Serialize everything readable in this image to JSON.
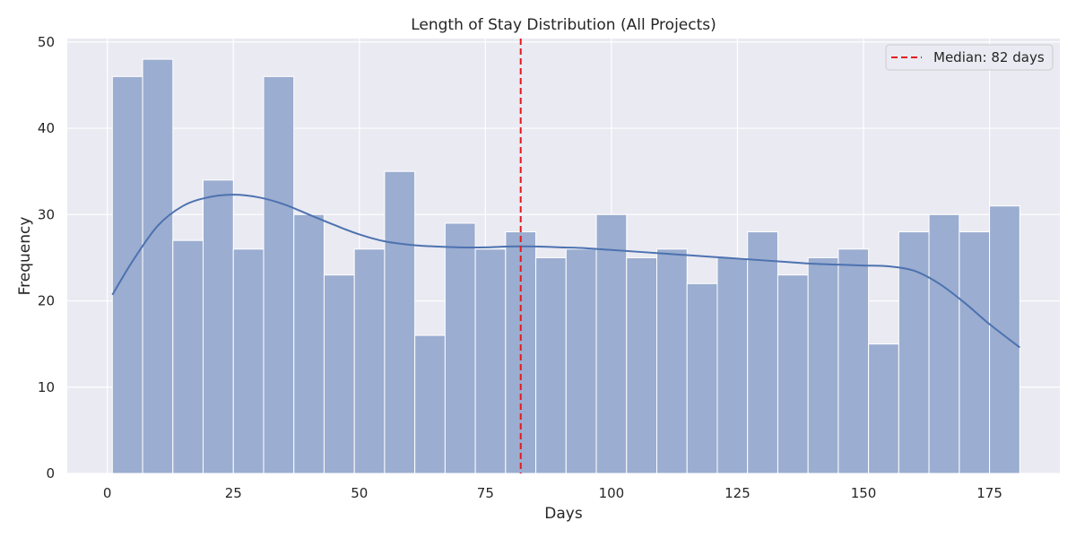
{
  "chart_data": {
    "type": "bar",
    "title": "Length of Stay Distribution (All Projects)",
    "xlabel": "Days",
    "ylabel": "Frequency",
    "xlim": [
      -7.95,
      188.95
    ],
    "ylim": [
      0,
      50.4
    ],
    "xticks": [
      0,
      25,
      50,
      75,
      100,
      125,
      150,
      175
    ],
    "yticks": [
      0,
      10,
      20,
      30,
      40,
      50
    ],
    "grid": true,
    "legend_position": "top-right",
    "bin_edges": [
      1,
      7,
      13,
      19,
      25,
      31,
      37,
      43,
      49,
      55,
      61,
      67,
      73,
      79,
      85,
      91,
      97,
      103,
      109,
      115,
      121,
      127,
      133,
      139,
      145,
      151,
      157,
      163,
      169,
      175,
      181
    ],
    "values": [
      46,
      48,
      27,
      34,
      26,
      46,
      30,
      23,
      26,
      35,
      16,
      29,
      26,
      28,
      25,
      26,
      30,
      25,
      26,
      22,
      25,
      28,
      23,
      25,
      26,
      15,
      28,
      30,
      28,
      31
    ],
    "kde": {
      "name": "",
      "x": [
        1,
        5,
        10,
        15,
        20,
        25,
        30,
        35,
        40,
        45,
        50,
        55,
        60,
        65,
        70,
        75,
        80,
        85,
        90,
        95,
        100,
        105,
        110,
        115,
        120,
        125,
        130,
        135,
        140,
        145,
        150,
        155,
        160,
        165,
        170,
        175,
        181
      ],
      "y": [
        20.7,
        24.6,
        28.7,
        31.0,
        32.0,
        32.3,
        32.0,
        31.2,
        30.0,
        28.8,
        27.7,
        26.9,
        26.5,
        26.3,
        26.2,
        26.2,
        26.3,
        26.3,
        26.2,
        26.1,
        25.9,
        25.7,
        25.5,
        25.3,
        25.1,
        24.9,
        24.7,
        24.5,
        24.3,
        24.2,
        24.1,
        24.0,
        23.5,
        22.0,
        19.8,
        17.3,
        14.6
      ]
    },
    "median": {
      "value": 82,
      "label": "Median: 82 days"
    },
    "colors": {
      "bar_fill": "#9badd0",
      "bar_edge": "#ffffff",
      "kde_line": "#4c72b0",
      "median_line": "#e41a1c",
      "plot_bg": "#eaeaf2",
      "grid": "#ffffff"
    }
  }
}
